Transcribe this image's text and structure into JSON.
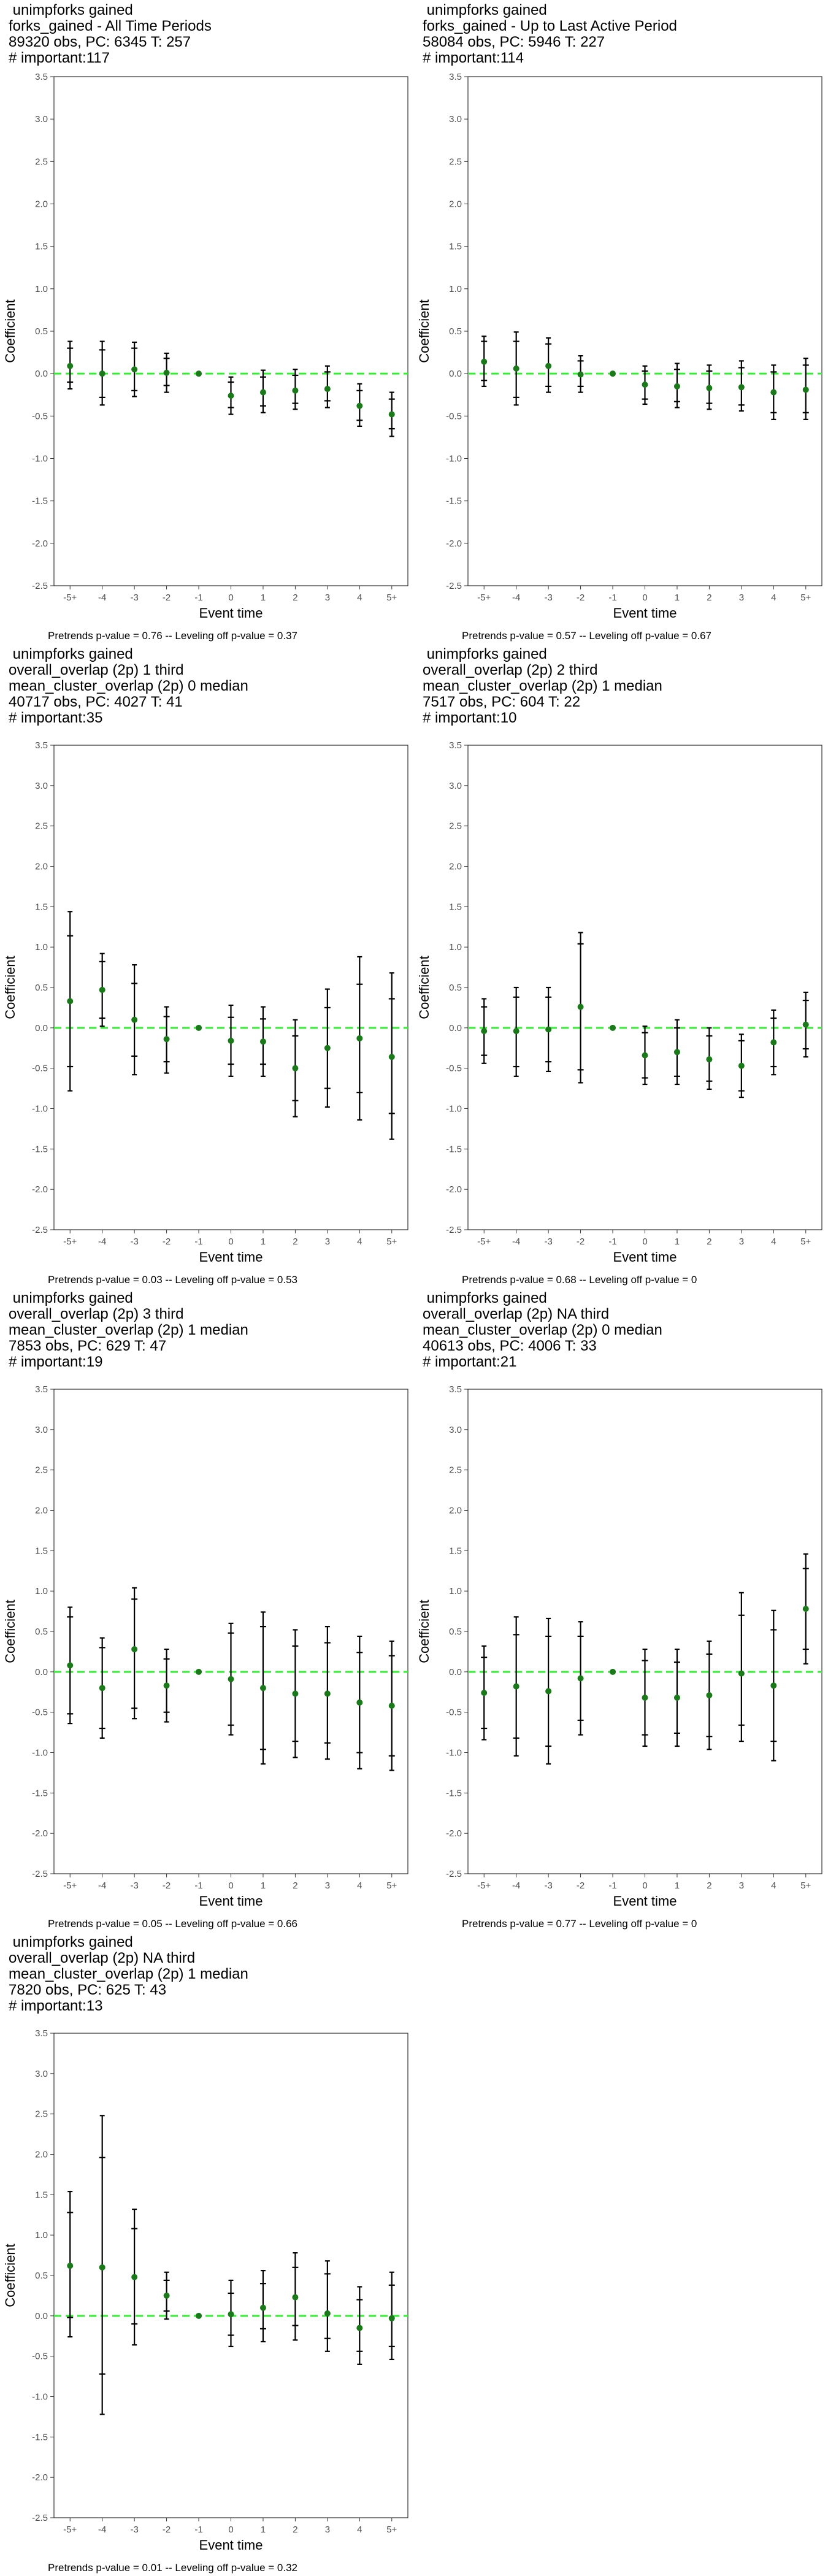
{
  "colors": {
    "point": "#1a7a1a",
    "zero_line": "#33ee33",
    "error_bar": "#000000",
    "frame": "#333333"
  },
  "chart_data": [
    {
      "type": "scatter",
      "title_lines": [
        " unimpforks gained",
        "forks_gained - All Time Periods",
        "89320 obs, PC: 6345 T: 257",
        "# important:117"
      ],
      "xlabel": "Event time",
      "ylabel": "Coefficient",
      "categories": [
        "-5+",
        "-4",
        "-3",
        "-2",
        "-1",
        "0",
        "1",
        "2",
        "3",
        "4",
        "5+"
      ],
      "ylim": [
        -2.5,
        3.5
      ],
      "yticks": [
        "-2.5",
        "-2.0",
        "-1.5",
        "-1.0",
        "-0.5",
        "0.0",
        "0.5",
        "1.0",
        "1.5",
        "2.0",
        "2.5",
        "3.0",
        "3.5"
      ],
      "points": [
        0.09,
        0.0,
        0.05,
        0.01,
        0.0,
        -0.26,
        -0.22,
        -0.2,
        -0.18,
        -0.38,
        -0.48
      ],
      "ci_outer": [
        [
          -0.18,
          0.38
        ],
        [
          -0.37,
          0.38
        ],
        [
          -0.27,
          0.37
        ],
        [
          -0.22,
          0.24
        ],
        [
          0,
          0
        ],
        [
          -0.48,
          -0.04
        ],
        [
          -0.46,
          0.04
        ],
        [
          -0.42,
          0.05
        ],
        [
          -0.4,
          0.09
        ],
        [
          -0.62,
          -0.12
        ],
        [
          -0.74,
          -0.22
        ]
      ],
      "ci_inner": [
        [
          -0.1,
          0.3
        ],
        [
          -0.28,
          0.28
        ],
        [
          -0.2,
          0.3
        ],
        [
          -0.14,
          0.18
        ],
        [
          0,
          0
        ],
        [
          -0.4,
          -0.1
        ],
        [
          -0.38,
          -0.04
        ],
        [
          -0.35,
          -0.02
        ],
        [
          -0.32,
          0.02
        ],
        [
          -0.55,
          -0.2
        ],
        [
          -0.65,
          -0.3
        ]
      ],
      "footer": "Pretrends p-value = 0.76 -- Leveling off p-value = 0.37"
    },
    {
      "type": "scatter",
      "title_lines": [
        " unimpforks gained",
        "forks_gained - Up to Last Active Period",
        "58084 obs, PC: 5946 T: 227",
        "# important:114"
      ],
      "xlabel": "Event time",
      "ylabel": "Coefficient",
      "categories": [
        "-5+",
        "-4",
        "-3",
        "-2",
        "-1",
        "0",
        "1",
        "2",
        "3",
        "4",
        "5+"
      ],
      "ylim": [
        -2.5,
        3.5
      ],
      "yticks": [
        "-2.5",
        "-2.0",
        "-1.5",
        "-1.0",
        "-0.5",
        "0.0",
        "0.5",
        "1.0",
        "1.5",
        "2.0",
        "2.5",
        "3.0",
        "3.5"
      ],
      "points": [
        0.14,
        0.06,
        0.09,
        -0.01,
        0.0,
        -0.13,
        -0.15,
        -0.17,
        -0.16,
        -0.22,
        -0.19
      ],
      "ci_outer": [
        [
          -0.15,
          0.44
        ],
        [
          -0.37,
          0.49
        ],
        [
          -0.22,
          0.42
        ],
        [
          -0.22,
          0.21
        ],
        [
          0,
          0
        ],
        [
          -0.36,
          0.09
        ],
        [
          -0.4,
          0.12
        ],
        [
          -0.42,
          0.1
        ],
        [
          -0.44,
          0.15
        ],
        [
          -0.54,
          0.1
        ],
        [
          -0.54,
          0.18
        ]
      ],
      "ci_inner": [
        [
          -0.08,
          0.38
        ],
        [
          -0.28,
          0.38
        ],
        [
          -0.15,
          0.35
        ],
        [
          -0.15,
          0.15
        ],
        [
          0,
          0
        ],
        [
          -0.3,
          0.03
        ],
        [
          -0.33,
          0.05
        ],
        [
          -0.35,
          0.03
        ],
        [
          -0.37,
          0.07
        ],
        [
          -0.46,
          0.02
        ],
        [
          -0.46,
          0.1
        ]
      ],
      "footer": "Pretrends p-value = 0.57 -- Leveling off p-value = 0.67"
    },
    {
      "type": "scatter",
      "title_lines": [
        " unimpforks gained",
        "overall_overlap (2p) 1 third",
        "mean_cluster_overlap (2p) 0 median",
        "40717 obs, PC: 4027 T: 41",
        "# important:35"
      ],
      "xlabel": "Event time",
      "ylabel": "Coefficient",
      "categories": [
        "-5+",
        "-4",
        "-3",
        "-2",
        "-1",
        "0",
        "1",
        "2",
        "3",
        "4",
        "5+"
      ],
      "ylim": [
        -2.5,
        3.5
      ],
      "yticks": [
        "-2.5",
        "-2.0",
        "-1.5",
        "-1.0",
        "-0.5",
        "0.0",
        "0.5",
        "1.0",
        "1.5",
        "2.0",
        "2.5",
        "3.0",
        "3.5"
      ],
      "points": [
        0.33,
        0.47,
        0.1,
        -0.14,
        0.0,
        -0.16,
        -0.17,
        -0.5,
        -0.25,
        -0.13,
        -0.36
      ],
      "ci_outer": [
        [
          -0.78,
          1.44
        ],
        [
          0.02,
          0.92
        ],
        [
          -0.58,
          0.78
        ],
        [
          -0.56,
          0.26
        ],
        [
          0,
          0
        ],
        [
          -0.6,
          0.28
        ],
        [
          -0.6,
          0.26
        ],
        [
          -1.1,
          0.1
        ],
        [
          -0.98,
          0.48
        ],
        [
          -1.14,
          0.88
        ],
        [
          -1.38,
          0.68
        ]
      ],
      "ci_inner": [
        [
          -0.48,
          1.14
        ],
        [
          0.12,
          0.82
        ],
        [
          -0.35,
          0.55
        ],
        [
          -0.42,
          0.14
        ],
        [
          0,
          0
        ],
        [
          -0.45,
          0.13
        ],
        [
          -0.45,
          0.11
        ],
        [
          -0.9,
          -0.1
        ],
        [
          -0.75,
          0.25
        ],
        [
          -0.8,
          0.54
        ],
        [
          -1.06,
          0.36
        ]
      ],
      "footer": "Pretrends p-value = 0.03 -- Leveling off p-value = 0.53"
    },
    {
      "type": "scatter",
      "title_lines": [
        " unimpforks gained",
        "overall_overlap (2p) 2 third",
        "mean_cluster_overlap (2p) 1 median",
        "7517 obs, PC: 604 T: 22",
        "# important:10"
      ],
      "xlabel": "Event time",
      "ylabel": "Coefficient",
      "categories": [
        "-5+",
        "-4",
        "-3",
        "-2",
        "-1",
        "0",
        "1",
        "2",
        "3",
        "4",
        "5+"
      ],
      "ylim": [
        -2.5,
        3.5
      ],
      "yticks": [
        "-2.5",
        "-2.0",
        "-1.5",
        "-1.0",
        "-0.5",
        "0.0",
        "0.5",
        "1.0",
        "1.5",
        "2.0",
        "2.5",
        "3.0",
        "3.5"
      ],
      "points": [
        -0.04,
        -0.04,
        -0.02,
        0.26,
        0.0,
        -0.34,
        -0.3,
        -0.39,
        -0.47,
        -0.18,
        0.04
      ],
      "ci_outer": [
        [
          -0.44,
          0.36
        ],
        [
          -0.6,
          0.5
        ],
        [
          -0.54,
          0.5
        ],
        [
          -0.68,
          1.18
        ],
        [
          0,
          0
        ],
        [
          -0.7,
          0.02
        ],
        [
          -0.7,
          0.1
        ],
        [
          -0.76,
          0.0
        ],
        [
          -0.86,
          -0.08
        ],
        [
          -0.58,
          0.22
        ],
        [
          -0.36,
          0.44
        ]
      ],
      "ci_inner": [
        [
          -0.34,
          0.26
        ],
        [
          -0.48,
          0.38
        ],
        [
          -0.42,
          0.38
        ],
        [
          -0.52,
          1.04
        ],
        [
          0,
          0
        ],
        [
          -0.62,
          -0.06
        ],
        [
          -0.6,
          0.0
        ],
        [
          -0.66,
          -0.1
        ],
        [
          -0.78,
          -0.16
        ],
        [
          -0.48,
          0.12
        ],
        [
          -0.26,
          0.34
        ]
      ],
      "footer": "Pretrends p-value = 0.68 -- Leveling off p-value = 0"
    },
    {
      "type": "scatter",
      "title_lines": [
        " unimpforks gained",
        "overall_overlap (2p) 3 third",
        "mean_cluster_overlap (2p) 1 median",
        "7853 obs, PC: 629 T: 47",
        "# important:19"
      ],
      "xlabel": "Event time",
      "ylabel": "Coefficient",
      "categories": [
        "-5+",
        "-4",
        "-3",
        "-2",
        "-1",
        "0",
        "1",
        "2",
        "3",
        "4",
        "5+"
      ],
      "ylim": [
        -2.5,
        3.5
      ],
      "yticks": [
        "-2.5",
        "-2.0",
        "-1.5",
        "-1.0",
        "-0.5",
        "0.0",
        "0.5",
        "1.0",
        "1.5",
        "2.0",
        "2.5",
        "3.0",
        "3.5"
      ],
      "points": [
        0.08,
        -0.2,
        0.28,
        -0.17,
        0.0,
        -0.09,
        -0.2,
        -0.27,
        -0.27,
        -0.38,
        -0.42
      ],
      "ci_outer": [
        [
          -0.64,
          0.8
        ],
        [
          -0.82,
          0.42
        ],
        [
          -0.58,
          1.04
        ],
        [
          -0.62,
          0.28
        ],
        [
          0,
          0
        ],
        [
          -0.78,
          0.6
        ],
        [
          -1.14,
          0.74
        ],
        [
          -1.06,
          0.52
        ],
        [
          -1.08,
          0.56
        ],
        [
          -1.2,
          0.44
        ],
        [
          -1.22,
          0.38
        ]
      ],
      "ci_inner": [
        [
          -0.52,
          0.68
        ],
        [
          -0.7,
          0.3
        ],
        [
          -0.45,
          0.9
        ],
        [
          -0.5,
          0.16
        ],
        [
          0,
          0
        ],
        [
          -0.66,
          0.48
        ],
        [
          -0.96,
          0.56
        ],
        [
          -0.86,
          0.32
        ],
        [
          -0.88,
          0.36
        ],
        [
          -1.0,
          0.24
        ],
        [
          -1.04,
          0.2
        ]
      ],
      "footer": "Pretrends p-value = 0.05 -- Leveling off p-value = 0.66"
    },
    {
      "type": "scatter",
      "title_lines": [
        " unimpforks gained",
        "overall_overlap (2p) NA third",
        "mean_cluster_overlap (2p) 0 median",
        "40613 obs, PC: 4006 T: 33",
        "# important:21"
      ],
      "xlabel": "Event time",
      "ylabel": "Coefficient",
      "categories": [
        "-5+",
        "-4",
        "-3",
        "-2",
        "-1",
        "0",
        "1",
        "2",
        "3",
        "4",
        "5+"
      ],
      "ylim": [
        -2.5,
        3.5
      ],
      "yticks": [
        "-2.5",
        "-2.0",
        "-1.5",
        "-1.0",
        "-0.5",
        "0.0",
        "0.5",
        "1.0",
        "1.5",
        "2.0",
        "2.5",
        "3.0",
        "3.5"
      ],
      "points": [
        -0.26,
        -0.18,
        -0.24,
        -0.08,
        0.0,
        -0.32,
        -0.32,
        -0.29,
        -0.02,
        -0.17,
        0.78
      ],
      "ci_outer": [
        [
          -0.84,
          0.32
        ],
        [
          -1.04,
          0.68
        ],
        [
          -1.14,
          0.66
        ],
        [
          -0.78,
          0.62
        ],
        [
          0,
          0
        ],
        [
          -0.92,
          0.28
        ],
        [
          -0.92,
          0.28
        ],
        [
          -0.96,
          0.38
        ],
        [
          -0.86,
          0.98
        ],
        [
          -1.1,
          0.76
        ],
        [
          0.1,
          1.46
        ]
      ],
      "ci_inner": [
        [
          -0.7,
          0.18
        ],
        [
          -0.82,
          0.46
        ],
        [
          -0.92,
          0.44
        ],
        [
          -0.6,
          0.44
        ],
        [
          0,
          0
        ],
        [
          -0.78,
          0.14
        ],
        [
          -0.76,
          0.12
        ],
        [
          -0.8,
          0.22
        ],
        [
          -0.66,
          0.7
        ],
        [
          -0.86,
          0.52
        ],
        [
          0.28,
          1.28
        ]
      ],
      "footer": "Pretrends p-value = 0.77 -- Leveling off p-value = 0"
    },
    {
      "type": "scatter",
      "title_lines": [
        " unimpforks gained",
        "overall_overlap (2p) NA third",
        "mean_cluster_overlap (2p) 1 median",
        "7820 obs, PC: 625 T: 43",
        "# important:13"
      ],
      "xlabel": "Event time",
      "ylabel": "Coefficient",
      "categories": [
        "-5+",
        "-4",
        "-3",
        "-2",
        "-1",
        "0",
        "1",
        "2",
        "3",
        "4",
        "5+"
      ],
      "ylim": [
        -2.5,
        3.5
      ],
      "yticks": [
        "-2.5",
        "-2.0",
        "-1.5",
        "-1.0",
        "-0.5",
        "0.0",
        "0.5",
        "1.0",
        "1.5",
        "2.0",
        "2.5",
        "3.0",
        "3.5"
      ],
      "points": [
        0.62,
        0.6,
        0.48,
        0.25,
        0.0,
        0.02,
        0.1,
        0.23,
        0.03,
        -0.15,
        -0.03
      ],
      "ci_outer": [
        [
          -0.26,
          1.54
        ],
        [
          -1.22,
          2.48
        ],
        [
          -0.36,
          1.32
        ],
        [
          -0.04,
          0.54
        ],
        [
          0,
          0
        ],
        [
          -0.38,
          0.44
        ],
        [
          -0.32,
          0.56
        ],
        [
          -0.3,
          0.78
        ],
        [
          -0.44,
          0.68
        ],
        [
          -0.6,
          0.36
        ],
        [
          -0.54,
          0.54
        ]
      ],
      "ci_inner": [
        [
          -0.02,
          1.28
        ],
        [
          -0.72,
          1.96
        ],
        [
          -0.1,
          1.08
        ],
        [
          0.06,
          0.44
        ],
        [
          0,
          0
        ],
        [
          -0.24,
          0.28
        ],
        [
          -0.16,
          0.4
        ],
        [
          -0.12,
          0.6
        ],
        [
          -0.28,
          0.52
        ],
        [
          -0.44,
          0.2
        ],
        [
          -0.38,
          0.38
        ]
      ],
      "footer": "Pretrends p-value = 0.01 -- Leveling off p-value = 0.32"
    }
  ]
}
